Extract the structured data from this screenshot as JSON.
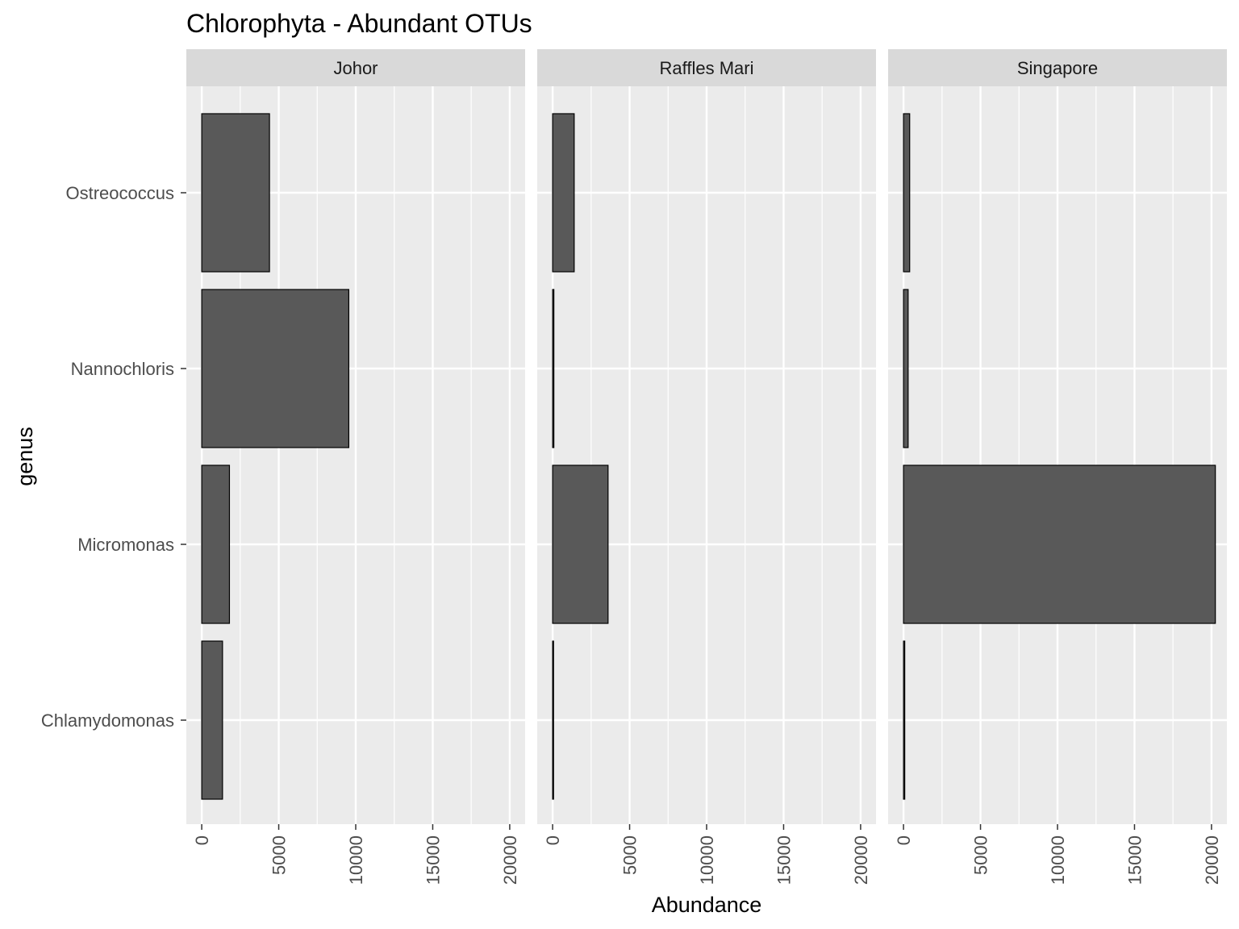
{
  "chart_data": {
    "type": "bar",
    "orientation": "horizontal",
    "title": "Chlorophyta - Abundant OTUs",
    "xlabel": "Abundance",
    "ylabel": "genus",
    "categories": [
      "Ostreococcus",
      "Nannochloris",
      "Micromonas",
      "Chlamydomonas"
    ],
    "xlim": [
      -1000,
      21000
    ],
    "x_ticks": [
      0,
      5000,
      10000,
      15000,
      20000
    ],
    "x_tick_labels": [
      "0",
      "5000",
      "10000",
      "15000",
      "20000"
    ],
    "grid": true,
    "legend": "none",
    "colors": {
      "bar_fill": "#595959",
      "bar_stroke": "#000000",
      "panel_bg": "#ebebeb",
      "strip_bg": "#d9d9d9",
      "grid": "#ffffff"
    },
    "facets": [
      {
        "name": "Johor",
        "values": [
          4400,
          9550,
          1800,
          1350
        ]
      },
      {
        "name": "Raffles Mari",
        "values": [
          1400,
          80,
          3600,
          60
        ]
      },
      {
        "name": "Singapore",
        "values": [
          400,
          300,
          20250,
          80
        ]
      }
    ]
  }
}
